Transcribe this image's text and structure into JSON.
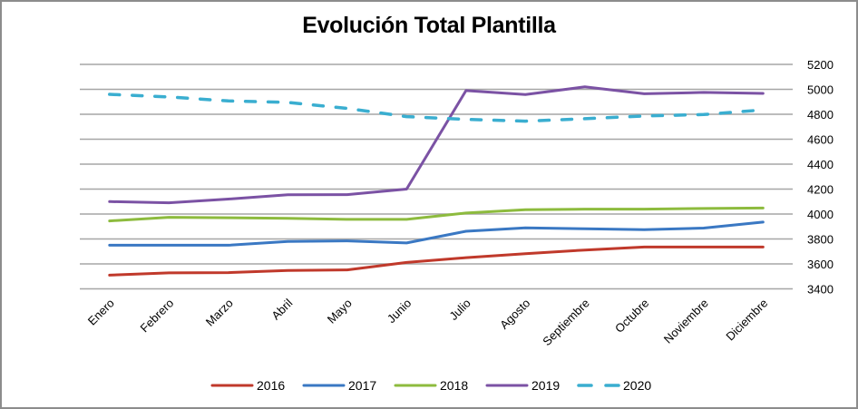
{
  "chart_data": {
    "type": "line",
    "title": "Evolución Total Plantilla",
    "xlabel": "",
    "ylabel": "",
    "categories": [
      "Enero",
      "Febrero",
      "Marzo",
      "Abril",
      "Mayo",
      "Junio",
      "Julio",
      "Agosto",
      "Septiembre",
      "Octubre",
      "Noviembre",
      "Diciembre"
    ],
    "ylim": [
      3400,
      5200
    ],
    "yticks": [
      3400,
      3600,
      3800,
      4000,
      4200,
      4400,
      4600,
      4800,
      5000,
      5200
    ],
    "y_axis_side": "right",
    "grid": true,
    "legend_position": "bottom",
    "series": [
      {
        "name": "2016",
        "color": "#c0392b",
        "style": "solid",
        "values": [
          3510,
          3528,
          3530,
          3547,
          3552,
          3612,
          3650,
          3682,
          3711,
          3735,
          3735,
          3735
        ]
      },
      {
        "name": "2017",
        "color": "#3a78c3",
        "style": "solid",
        "values": [
          3750,
          3750,
          3750,
          3780,
          3785,
          3768,
          3862,
          3889,
          3882,
          3875,
          3887,
          3935
        ]
      },
      {
        "name": "2018",
        "color": "#8dbb3e",
        "style": "solid",
        "values": [
          3945,
          3974,
          3970,
          3965,
          3957,
          3957,
          4008,
          4034,
          4039,
          4039,
          4044,
          4048
        ]
      },
      {
        "name": "2019",
        "color": "#7b52a4",
        "style": "solid",
        "values": [
          4100,
          4090,
          4120,
          4155,
          4156,
          4200,
          4990,
          4958,
          5020,
          4964,
          4975,
          4967
        ]
      },
      {
        "name": "2020",
        "color": "#3aaed0",
        "style": "dashed",
        "values": [
          4960,
          4939,
          4907,
          4895,
          4847,
          4781,
          4759,
          4745,
          4764,
          4786,
          4798,
          4835
        ]
      }
    ]
  }
}
